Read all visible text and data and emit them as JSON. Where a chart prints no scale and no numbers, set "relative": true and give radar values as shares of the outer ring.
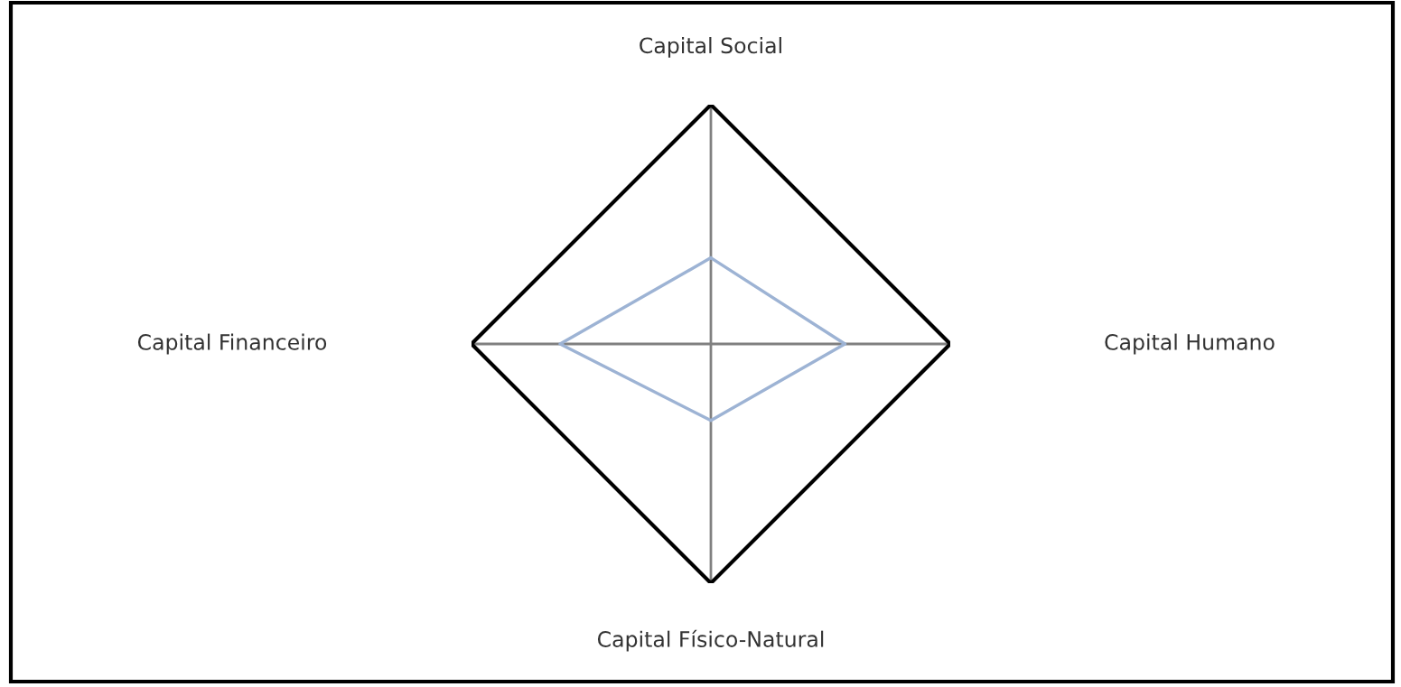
{
  "chart_data": {
    "type": "radar",
    "relative": true,
    "grid": true,
    "categories": [
      "Capital Social",
      "Capital Humano",
      "Capital Físico-Natural",
      "Capital Financeiro"
    ],
    "series": [
      {
        "color": "#9db3d4",
        "values": [
          0.36,
          0.56,
          0.32,
          0.63
        ]
      }
    ]
  }
}
